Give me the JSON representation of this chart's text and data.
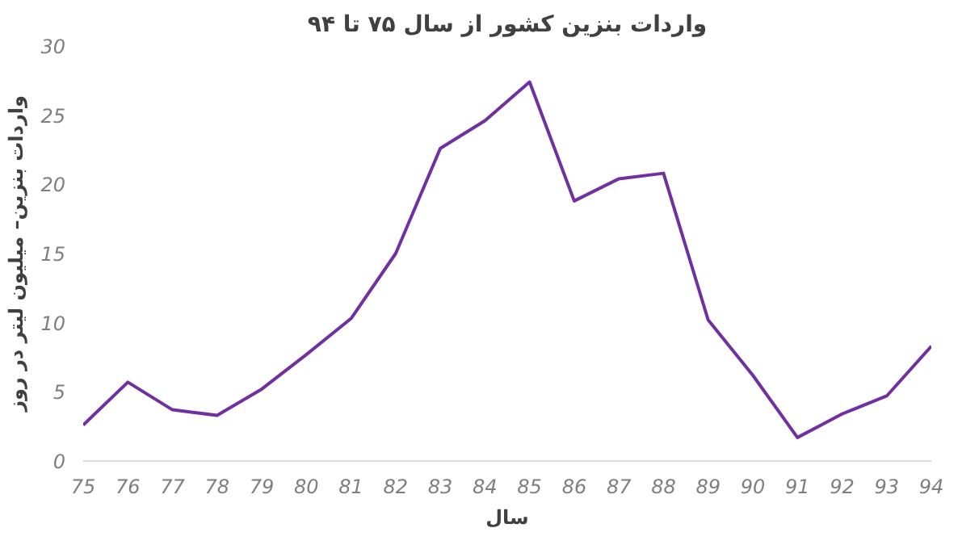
{
  "chart_data": {
    "type": "line",
    "title": "واردات بنزین کشور از سال ۷۵ تا ۹۴",
    "xlabel": "سال",
    "ylabel": "واردات بنزین– میلیون لیتر در روز",
    "categories": [
      "75",
      "76",
      "77",
      "78",
      "79",
      "80",
      "81",
      "82",
      "83",
      "84",
      "85",
      "86",
      "87",
      "88",
      "89",
      "90",
      "91",
      "92",
      "93",
      "94"
    ],
    "series": [
      {
        "color": "#7030a0",
        "values": [
          2.6,
          5.7,
          3.7,
          3.3,
          5.2,
          7.7,
          10.3,
          15,
          22.6,
          24.6,
          27.4,
          18.8,
          20.4,
          20.8,
          10.2,
          6.2,
          1.7,
          3.4,
          4.7,
          8.3
        ]
      }
    ],
    "ylim": [
      0,
      30
    ],
    "yticks": [
      0,
      5,
      10,
      15,
      20,
      25,
      30
    ],
    "grid": false,
    "marker": "none",
    "line_style": "solid"
  }
}
